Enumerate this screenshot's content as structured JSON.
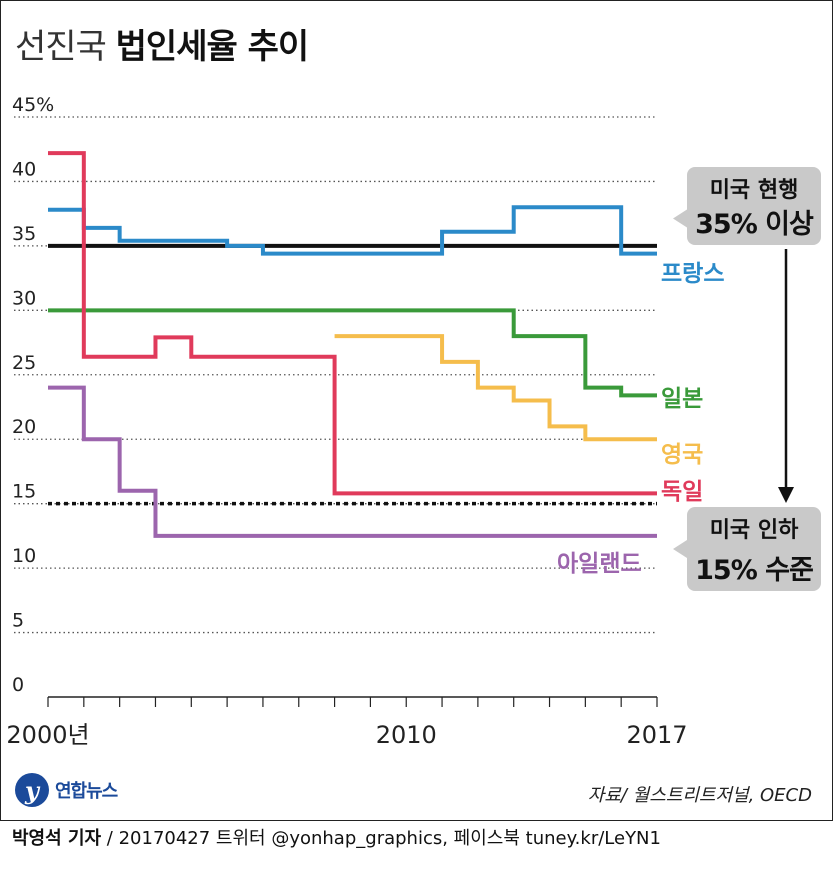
{
  "title": {
    "light": "선진국",
    "bold": "법인세율 추이"
  },
  "source": "자료/ 월스트리트저널, OECD",
  "logo": {
    "mark": "y",
    "text": "연합뉴스"
  },
  "footer": {
    "reporter": "박영석 기자",
    "rest": " / 20170427   트위터 @yonhap_graphics, 페이스북 tuney.kr/LeYN1"
  },
  "chart_data": {
    "type": "line",
    "step": true,
    "title": "선진국 법인세율 추이",
    "y_unit": "%",
    "ylim": [
      0,
      45
    ],
    "yticks": [
      "0",
      "5",
      "10",
      "15",
      "20",
      "25",
      "30",
      "35",
      "40",
      "45%"
    ],
    "ytick_values": [
      0,
      5,
      10,
      15,
      20,
      25,
      30,
      35,
      40,
      45
    ],
    "xlim": [
      2000,
      2017
    ],
    "xtick_values": [
      2000,
      2010,
      2017
    ],
    "xticks": [
      "2000년",
      "2010",
      "2017"
    ],
    "grid": "dotted horizontal",
    "series": [
      {
        "name": "프랑스",
        "color": "#2b8ac9",
        "x": [
          2000,
          2001,
          2002,
          2005,
          2006,
          2011,
          2013,
          2016,
          2017
        ],
        "y": [
          37.8,
          36.4,
          35.4,
          35.0,
          34.4,
          36.1,
          38.0,
          34.4,
          34.4
        ]
      },
      {
        "name": "일본",
        "color": "#3a9a3a",
        "x": [
          2000,
          2013,
          2015,
          2016,
          2017
        ],
        "y": [
          30.0,
          28.0,
          24.0,
          23.4,
          23.4
        ]
      },
      {
        "name": "영국",
        "color": "#f5bd4c",
        "x": [
          2008,
          2011,
          2012,
          2013,
          2014,
          2015,
          2017
        ],
        "y": [
          28.0,
          26.0,
          24.0,
          23.0,
          21.0,
          20.0,
          20.0
        ]
      },
      {
        "name": "독일",
        "color": "#e03a5b",
        "x": [
          2000,
          2001,
          2003,
          2004,
          2008,
          2017
        ],
        "y": [
          42.2,
          26.4,
          27.9,
          26.4,
          15.8,
          15.8
        ]
      },
      {
        "name": "아일랜드",
        "color": "#9c65ad",
        "x": [
          2000,
          2001,
          2002,
          2003,
          2017
        ],
        "y": [
          24.0,
          20.0,
          16.0,
          12.5,
          12.5
        ]
      }
    ],
    "reference_lines": [
      {
        "value": 35,
        "style": "solid",
        "color": "#111111"
      },
      {
        "value": 15,
        "style": "dotted",
        "color": "#111111"
      }
    ],
    "annotations": [
      {
        "line1": "미국 현행",
        "line2": "35% 이상"
      },
      {
        "line1": "미국 인하",
        "line2": "15% 수준"
      }
    ]
  }
}
